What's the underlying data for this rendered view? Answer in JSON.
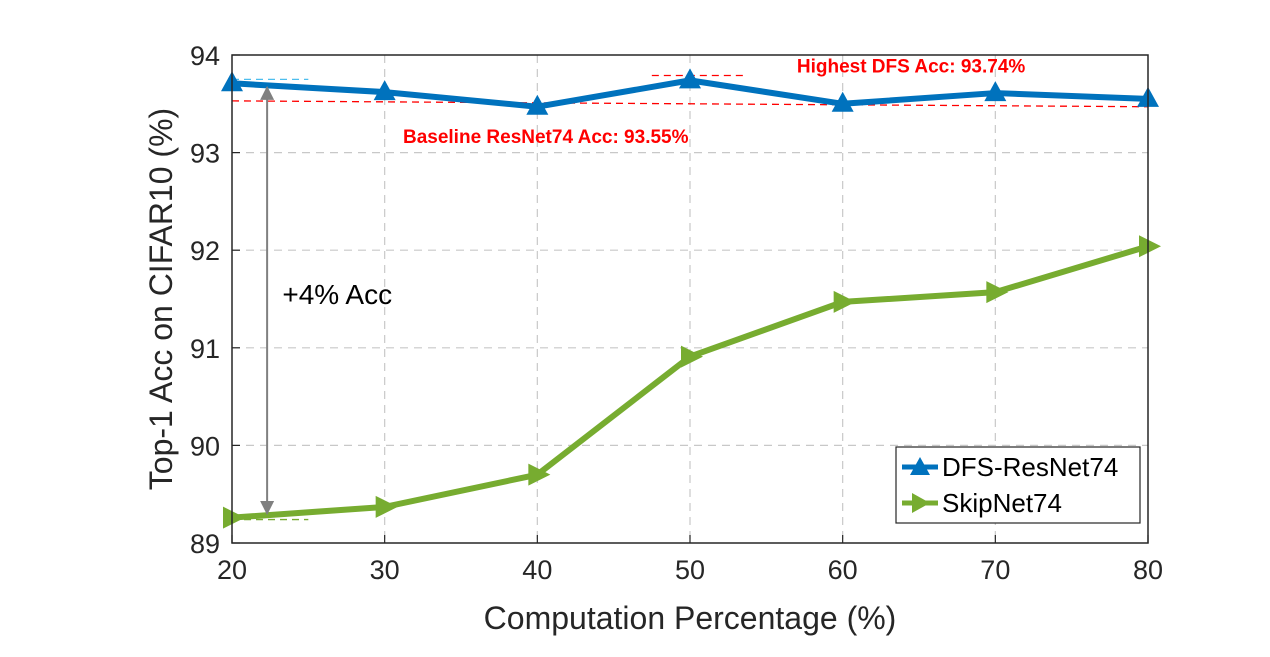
{
  "chart_data": {
    "type": "line",
    "title": "",
    "xlabel": "Computation Percentage (%)",
    "ylabel": "Top-1 Acc on CIFAR10 (%)",
    "xlim": [
      20,
      80
    ],
    "ylim": [
      89,
      94
    ],
    "x_ticks": [
      20,
      30,
      40,
      50,
      60,
      70,
      80
    ],
    "y_ticks": [
      89,
      90,
      91,
      92,
      93,
      94
    ],
    "grid": true,
    "legend_position": "bottom-right",
    "series": [
      {
        "name": "DFS-ResNet74",
        "color": "#0072bd",
        "marker": "triangle-up",
        "x": [
          20,
          30,
          40,
          50,
          60,
          70,
          80
        ],
        "y": [
          93.71,
          93.62,
          93.47,
          93.74,
          93.5,
          93.61,
          93.55
        ]
      },
      {
        "name": "SkipNet74",
        "color": "#77ac30",
        "marker": "triangle-right",
        "x": [
          20,
          30,
          40,
          50,
          60,
          70,
          80
        ],
        "y": [
          89.26,
          89.37,
          89.7,
          90.91,
          91.47,
          91.57,
          92.04
        ]
      }
    ],
    "annotations": {
      "highest": {
        "text": "Highest DFS Acc: 93.74%",
        "x": 57,
        "y": 93.82,
        "color": "#ff0000"
      },
      "baseline": {
        "text": "Baseline ResNet74 Acc: 93.55%",
        "x": 31.2,
        "y": 93.1,
        "color": "#ff0000"
      },
      "gain": {
        "text": "+4% Acc",
        "x": 23.3,
        "y": 91.45,
        "color": "#000000"
      }
    },
    "reference_lines": {
      "baseline_trend": {
        "x": [
          20,
          80
        ],
        "y": [
          93.53,
          93.47
        ],
        "color": "#ff0000"
      },
      "highest_mark": {
        "x": [
          47.5,
          53.5
        ],
        "y": [
          93.79,
          93.79
        ],
        "color": "#ff0000"
      },
      "dfs_start_mark": {
        "x": [
          20,
          25
        ],
        "y": [
          93.75,
          93.75
        ],
        "color": "#4dbeee"
      },
      "skip_start_mark": {
        "x": [
          20,
          25
        ],
        "y": [
          89.24,
          89.24
        ],
        "color": "#77ac30"
      }
    },
    "gain_arrow": {
      "x": 22.3,
      "y_from": 93.71,
      "y_to": 89.26,
      "color": "#808080"
    }
  }
}
